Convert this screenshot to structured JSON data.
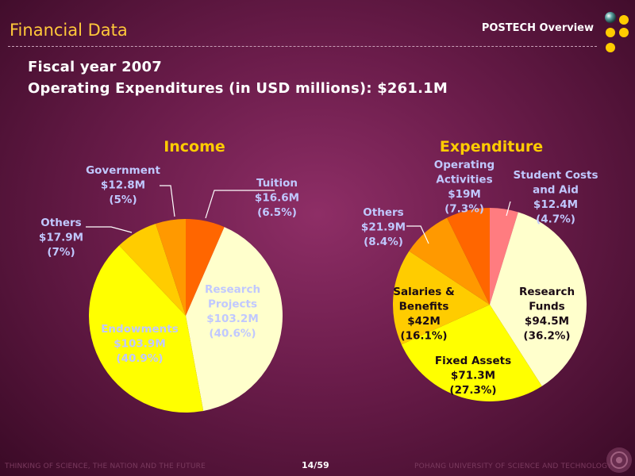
{
  "slide": {
    "title": "Financial Data",
    "header_right": "POSTECH Overview",
    "heading_line1": "Fiscal year 2007",
    "heading_line2": "Operating Expenditures (in USD millions): $261.1M",
    "footer_left": "THINKING OF SCIENCE, THE NATION AND THE FUTURE",
    "page": "14/59",
    "footer_right": "POHANG UNIVERSITY OF SCIENCE AND TECHNOLOGY"
  },
  "colors": {
    "title": "#ffc83a",
    "chart_title": "#ffcc00",
    "label_light": "#c0c8ff",
    "label_dark": "#1a0a14",
    "dot_yellow": "#ffcc00"
  },
  "chart_data": [
    {
      "type": "pie",
      "title": "Income",
      "slices": [
        {
          "label": [
            "Tuition",
            "$16.6M",
            "(6.5%)"
          ],
          "value": 16.6,
          "color": "#ff6600"
        },
        {
          "label": [
            "Research",
            "Projects",
            "$103.2M",
            "(40.6%)"
          ],
          "value": 103.2,
          "color": "#ffffcc"
        },
        {
          "label": [
            "Endowments",
            "$103.9M",
            "(40.9%)"
          ],
          "value": 103.9,
          "color": "#ffff00"
        },
        {
          "label": [
            "Others",
            "$17.9M",
            "(7%)"
          ],
          "value": 17.9,
          "color": "#ffcc00"
        },
        {
          "label": [
            "Government",
            "$12.8M",
            "(5%)"
          ],
          "value": 12.8,
          "color": "#ff9900"
        }
      ]
    },
    {
      "type": "pie",
      "title": "Expenditure",
      "slices": [
        {
          "label": [
            "Student Costs",
            "and Aid",
            "$12.4M",
            "(4.7%)"
          ],
          "value": 12.4,
          "color": "#ff7c80"
        },
        {
          "label": [
            "Research",
            "Funds",
            "$94.5M",
            "(36.2%)"
          ],
          "value": 94.5,
          "color": "#ffffcc"
        },
        {
          "label": [
            "Fixed Assets",
            "$71.3M",
            "(27.3%)"
          ],
          "value": 71.3,
          "color": "#ffff00"
        },
        {
          "label": [
            "Salaries &",
            "Benefits",
            "$42M",
            "(16.1%)"
          ],
          "value": 42,
          "color": "#ffcc00"
        },
        {
          "label": [
            "Others",
            "$21.9M",
            "(8.4%)"
          ],
          "value": 21.9,
          "color": "#ff9900"
        },
        {
          "label": [
            "Operating",
            "Activities",
            "$19M",
            "(7.3%)"
          ],
          "value": 19,
          "color": "#ff6600"
        }
      ]
    }
  ]
}
